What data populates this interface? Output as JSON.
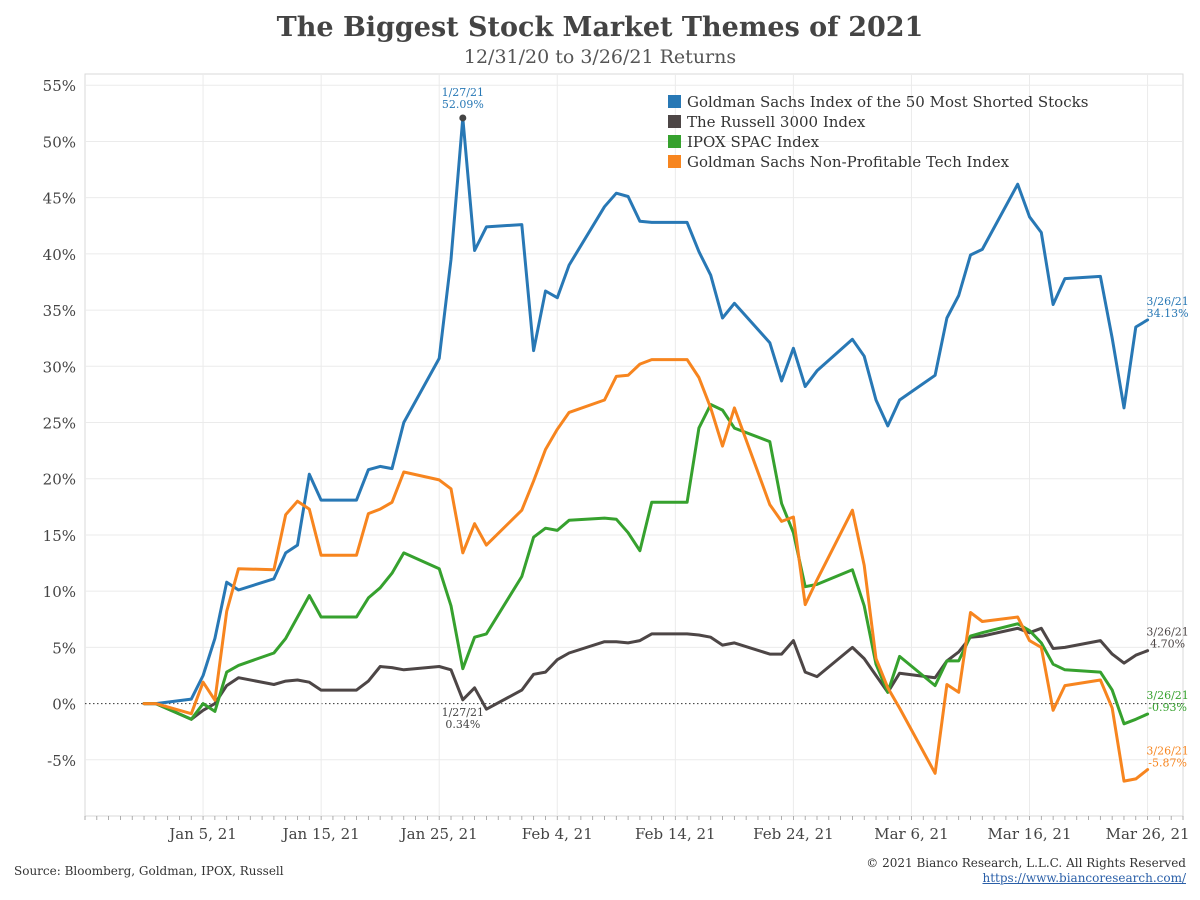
{
  "colors": {
    "blue": "#2878b5",
    "dark": "#4d4646",
    "green": "#36a12e",
    "orange": "#f7851f"
  },
  "chart_data": {
    "type": "line",
    "title": "The Biggest Stock Market Themes of 2021",
    "subtitle": "12/31/20 to 3/26/21 Returns",
    "ylim": [
      -10,
      56
    ],
    "yticks": [
      -5,
      0,
      5,
      10,
      15,
      20,
      25,
      30,
      35,
      40,
      45,
      50,
      55
    ],
    "ytick_labels": [
      "-5%",
      "0%",
      "5%",
      "10%",
      "15%",
      "20%",
      "25%",
      "30%",
      "35%",
      "40%",
      "45%",
      "50%",
      "55%"
    ],
    "xticks": [
      "2021-01-05",
      "2021-01-15",
      "2021-01-25",
      "2021-02-04",
      "2021-02-14",
      "2021-02-24",
      "2021-03-06",
      "2021-03-16",
      "2021-03-26"
    ],
    "xtick_labels": [
      "Jan 5, 21",
      "Jan 15, 21",
      "Jan 25, 21",
      "Feb 4, 21",
      "Feb 14, 21",
      "Feb 24, 21",
      "Mar 6, 21",
      "Mar 16, 21",
      "Mar 26, 21"
    ],
    "xlim": [
      "2020-12-26",
      "2021-03-29"
    ],
    "grid": true,
    "zero_line": "dotted",
    "legend_position": "top-right",
    "series": [
      {
        "name": "Goldman Sachs Index of the 50 Most Shorted Stocks",
        "color": "#2878b5",
        "points": [
          [
            "2020-12-31",
            0
          ],
          [
            "2021-01-01",
            0
          ],
          [
            "2021-01-04",
            0.4
          ],
          [
            "2021-01-05",
            2.5
          ],
          [
            "2021-01-06",
            5.8
          ],
          [
            "2021-01-07",
            10.8
          ],
          [
            "2021-01-08",
            10.1
          ],
          [
            "2021-01-11",
            11.1
          ],
          [
            "2021-01-12",
            13.4
          ],
          [
            "2021-01-13",
            14.1
          ],
          [
            "2021-01-14",
            20.4
          ],
          [
            "2021-01-15",
            18.1
          ],
          [
            "2021-01-18",
            18.1
          ],
          [
            "2021-01-19",
            20.8
          ],
          [
            "2021-01-20",
            21.1
          ],
          [
            "2021-01-21",
            20.9
          ],
          [
            "2021-01-22",
            25.0
          ],
          [
            "2021-01-25",
            30.7
          ],
          [
            "2021-01-26",
            39.5
          ],
          [
            "2021-01-27",
            52.09
          ],
          [
            "2021-01-28",
            40.3
          ],
          [
            "2021-01-29",
            42.4
          ],
          [
            "2021-02-01",
            42.6
          ],
          [
            "2021-02-02",
            31.4
          ],
          [
            "2021-02-03",
            36.7
          ],
          [
            "2021-02-04",
            36.1
          ],
          [
            "2021-02-05",
            39.0
          ],
          [
            "2021-02-08",
            44.2
          ],
          [
            "2021-02-09",
            45.4
          ],
          [
            "2021-02-10",
            45.1
          ],
          [
            "2021-02-11",
            42.9
          ],
          [
            "2021-02-12",
            42.8
          ],
          [
            "2021-02-15",
            42.8
          ],
          [
            "2021-02-16",
            40.2
          ],
          [
            "2021-02-17",
            38.1
          ],
          [
            "2021-02-18",
            34.3
          ],
          [
            "2021-02-19",
            35.6
          ],
          [
            "2021-02-22",
            32.1
          ],
          [
            "2021-02-23",
            28.7
          ],
          [
            "2021-02-24",
            31.6
          ],
          [
            "2021-02-25",
            28.2
          ],
          [
            "2021-02-26",
            29.6
          ],
          [
            "2021-03-01",
            32.4
          ],
          [
            "2021-03-02",
            30.9
          ],
          [
            "2021-03-03",
            27.0
          ],
          [
            "2021-03-04",
            24.7
          ],
          [
            "2021-03-05",
            27.0
          ],
          [
            "2021-03-08",
            29.2
          ],
          [
            "2021-03-09",
            34.3
          ],
          [
            "2021-03-10",
            36.3
          ],
          [
            "2021-03-11",
            39.9
          ],
          [
            "2021-03-12",
            40.4
          ],
          [
            "2021-03-15",
            46.2
          ],
          [
            "2021-03-16",
            43.3
          ],
          [
            "2021-03-17",
            41.9
          ],
          [
            "2021-03-18",
            35.5
          ],
          [
            "2021-03-19",
            37.8
          ],
          [
            "2021-03-22",
            38.0
          ],
          [
            "2021-03-23",
            32.5
          ],
          [
            "2021-03-24",
            26.3
          ],
          [
            "2021-03-25",
            33.5
          ],
          [
            "2021-03-26",
            34.13
          ]
        ]
      },
      {
        "name": "The Russell 3000 Index",
        "color": "#4d4646",
        "points": [
          [
            "2020-12-31",
            0
          ],
          [
            "2021-01-01",
            0
          ],
          [
            "2021-01-04",
            -1.4
          ],
          [
            "2021-01-05",
            -0.6
          ],
          [
            "2021-01-06",
            0.0
          ],
          [
            "2021-01-07",
            1.6
          ],
          [
            "2021-01-08",
            2.3
          ],
          [
            "2021-01-11",
            1.7
          ],
          [
            "2021-01-12",
            2.0
          ],
          [
            "2021-01-13",
            2.1
          ],
          [
            "2021-01-14",
            1.9
          ],
          [
            "2021-01-15",
            1.2
          ],
          [
            "2021-01-18",
            1.2
          ],
          [
            "2021-01-19",
            2.0
          ],
          [
            "2021-01-20",
            3.3
          ],
          [
            "2021-01-21",
            3.2
          ],
          [
            "2021-01-22",
            3.0
          ],
          [
            "2021-01-25",
            3.3
          ],
          [
            "2021-01-26",
            3.0
          ],
          [
            "2021-01-27",
            0.34
          ],
          [
            "2021-01-28",
            1.4
          ],
          [
            "2021-01-29",
            -0.5
          ],
          [
            "2021-02-01",
            1.2
          ],
          [
            "2021-02-02",
            2.6
          ],
          [
            "2021-02-03",
            2.8
          ],
          [
            "2021-02-04",
            3.9
          ],
          [
            "2021-02-05",
            4.5
          ],
          [
            "2021-02-08",
            5.5
          ],
          [
            "2021-02-09",
            5.5
          ],
          [
            "2021-02-10",
            5.4
          ],
          [
            "2021-02-11",
            5.6
          ],
          [
            "2021-02-12",
            6.2
          ],
          [
            "2021-02-15",
            6.2
          ],
          [
            "2021-02-16",
            6.1
          ],
          [
            "2021-02-17",
            5.9
          ],
          [
            "2021-02-18",
            5.2
          ],
          [
            "2021-02-19",
            5.4
          ],
          [
            "2021-02-22",
            4.4
          ],
          [
            "2021-02-23",
            4.4
          ],
          [
            "2021-02-24",
            5.6
          ],
          [
            "2021-02-25",
            2.8
          ],
          [
            "2021-02-26",
            2.4
          ],
          [
            "2021-03-01",
            5.0
          ],
          [
            "2021-03-02",
            4.0
          ],
          [
            "2021-03-03",
            2.5
          ],
          [
            "2021-03-04",
            1.0
          ],
          [
            "2021-03-05",
            2.7
          ],
          [
            "2021-03-08",
            2.3
          ],
          [
            "2021-03-09",
            3.8
          ],
          [
            "2021-03-10",
            4.6
          ],
          [
            "2021-03-11",
            5.9
          ],
          [
            "2021-03-12",
            6.0
          ],
          [
            "2021-03-15",
            6.7
          ],
          [
            "2021-03-16",
            6.3
          ],
          [
            "2021-03-17",
            6.7
          ],
          [
            "2021-03-18",
            4.9
          ],
          [
            "2021-03-19",
            5.0
          ],
          [
            "2021-03-22",
            5.6
          ],
          [
            "2021-03-23",
            4.4
          ],
          [
            "2021-03-24",
            3.6
          ],
          [
            "2021-03-25",
            4.3
          ],
          [
            "2021-03-26",
            4.7
          ]
        ]
      },
      {
        "name": "IPOX SPAC Index",
        "color": "#36a12e",
        "points": [
          [
            "2020-12-31",
            0
          ],
          [
            "2021-01-01",
            0
          ],
          [
            "2021-01-04",
            -1.4
          ],
          [
            "2021-01-05",
            0.0
          ],
          [
            "2021-01-06",
            -0.7
          ],
          [
            "2021-01-07",
            2.8
          ],
          [
            "2021-01-08",
            3.4
          ],
          [
            "2021-01-11",
            4.5
          ],
          [
            "2021-01-12",
            5.8
          ],
          [
            "2021-01-14",
            9.6
          ],
          [
            "2021-01-15",
            7.7
          ],
          [
            "2021-01-18",
            7.7
          ],
          [
            "2021-01-19",
            9.4
          ],
          [
            "2021-01-20",
            10.3
          ],
          [
            "2021-01-21",
            11.6
          ],
          [
            "2021-01-22",
            13.4
          ],
          [
            "2021-01-25",
            12.0
          ],
          [
            "2021-01-26",
            8.7
          ],
          [
            "2021-01-27",
            3.1
          ],
          [
            "2021-01-28",
            5.9
          ],
          [
            "2021-01-29",
            6.2
          ],
          [
            "2021-02-01",
            11.3
          ],
          [
            "2021-02-02",
            14.8
          ],
          [
            "2021-02-03",
            15.6
          ],
          [
            "2021-02-04",
            15.4
          ],
          [
            "2021-02-05",
            16.3
          ],
          [
            "2021-02-08",
            16.5
          ],
          [
            "2021-02-09",
            16.4
          ],
          [
            "2021-02-10",
            15.2
          ],
          [
            "2021-02-11",
            13.6
          ],
          [
            "2021-02-12",
            17.9
          ],
          [
            "2021-02-15",
            17.9
          ],
          [
            "2021-02-16",
            24.5
          ],
          [
            "2021-02-17",
            26.6
          ],
          [
            "2021-02-18",
            26.1
          ],
          [
            "2021-02-19",
            24.5
          ],
          [
            "2021-02-22",
            23.3
          ],
          [
            "2021-02-23",
            17.8
          ],
          [
            "2021-02-24",
            15.2
          ],
          [
            "2021-02-25",
            10.4
          ],
          [
            "2021-02-26",
            10.6
          ],
          [
            "2021-03-01",
            11.9
          ],
          [
            "2021-03-02",
            8.7
          ],
          [
            "2021-03-03",
            3.5
          ],
          [
            "2021-03-04",
            1.0
          ],
          [
            "2021-03-05",
            4.2
          ],
          [
            "2021-03-08",
            1.6
          ],
          [
            "2021-03-09",
            3.8
          ],
          [
            "2021-03-10",
            3.8
          ],
          [
            "2021-03-11",
            6.0
          ],
          [
            "2021-03-12",
            6.3
          ],
          [
            "2021-03-15",
            7.1
          ],
          [
            "2021-03-16",
            6.5
          ],
          [
            "2021-03-17",
            5.4
          ],
          [
            "2021-03-18",
            3.5
          ],
          [
            "2021-03-19",
            3.0
          ],
          [
            "2021-03-22",
            2.8
          ],
          [
            "2021-03-23",
            1.2
          ],
          [
            "2021-03-24",
            -1.8
          ],
          [
            "2021-03-25",
            -1.4
          ],
          [
            "2021-03-26",
            -0.93
          ]
        ]
      },
      {
        "name": "Goldman Sachs Non-Profitable Tech Index",
        "color": "#f7851f",
        "points": [
          [
            "2020-12-31",
            0
          ],
          [
            "2021-01-01",
            0
          ],
          [
            "2021-01-04",
            -0.9
          ],
          [
            "2021-01-05",
            1.9
          ],
          [
            "2021-01-06",
            0.3
          ],
          [
            "2021-01-07",
            8.2
          ],
          [
            "2021-01-08",
            12.0
          ],
          [
            "2021-01-11",
            11.9
          ],
          [
            "2021-01-12",
            16.8
          ],
          [
            "2021-01-13",
            18.0
          ],
          [
            "2021-01-14",
            17.3
          ],
          [
            "2021-01-15",
            13.2
          ],
          [
            "2021-01-18",
            13.2
          ],
          [
            "2021-01-19",
            16.9
          ],
          [
            "2021-01-20",
            17.3
          ],
          [
            "2021-01-21",
            17.9
          ],
          [
            "2021-01-22",
            20.6
          ],
          [
            "2021-01-25",
            19.9
          ],
          [
            "2021-01-26",
            19.1
          ],
          [
            "2021-01-27",
            13.4
          ],
          [
            "2021-01-28",
            16.0
          ],
          [
            "2021-01-29",
            14.1
          ],
          [
            "2021-02-01",
            17.2
          ],
          [
            "2021-02-02",
            19.8
          ],
          [
            "2021-02-03",
            22.6
          ],
          [
            "2021-02-04",
            24.4
          ],
          [
            "2021-02-05",
            25.9
          ],
          [
            "2021-02-08",
            27.0
          ],
          [
            "2021-02-09",
            29.1
          ],
          [
            "2021-02-10",
            29.2
          ],
          [
            "2021-02-11",
            30.2
          ],
          [
            "2021-02-12",
            30.6
          ],
          [
            "2021-02-15",
            30.6
          ],
          [
            "2021-02-16",
            29.0
          ],
          [
            "2021-02-17",
            26.3
          ],
          [
            "2021-02-18",
            22.9
          ],
          [
            "2021-02-19",
            26.3
          ],
          [
            "2021-02-22",
            17.7
          ],
          [
            "2021-02-23",
            16.2
          ],
          [
            "2021-02-24",
            16.6
          ],
          [
            "2021-02-25",
            8.8
          ],
          [
            "2021-02-26",
            11.0
          ],
          [
            "2021-03-01",
            17.2
          ],
          [
            "2021-03-02",
            12.3
          ],
          [
            "2021-03-03",
            4.0
          ],
          [
            "2021-03-04",
            1.4
          ],
          [
            "2021-03-05",
            -0.4
          ],
          [
            "2021-03-08",
            -6.2
          ],
          [
            "2021-03-09",
            1.7
          ],
          [
            "2021-03-10",
            1.0
          ],
          [
            "2021-03-11",
            8.1
          ],
          [
            "2021-03-12",
            7.3
          ],
          [
            "2021-03-15",
            7.7
          ],
          [
            "2021-03-16",
            5.6
          ],
          [
            "2021-03-17",
            5.0
          ],
          [
            "2021-03-18",
            -0.6
          ],
          [
            "2021-03-19",
            1.6
          ],
          [
            "2021-03-22",
            2.1
          ],
          [
            "2021-03-23",
            -0.4
          ],
          [
            "2021-03-24",
            -6.9
          ],
          [
            "2021-03-25",
            -6.7
          ],
          [
            "2021-03-26",
            -5.87
          ]
        ]
      }
    ],
    "annotations": [
      {
        "series": 0,
        "date": "2021-01-27",
        "line1": "1/27/21",
        "line2": "52.09%",
        "placement": "above",
        "marker": true
      },
      {
        "series": 1,
        "date": "2021-01-27",
        "line1": "1/27/21",
        "line2": "0.34%",
        "placement": "below",
        "marker": false
      },
      {
        "series": 0,
        "date": "2021-03-26",
        "line1": "3/26/21",
        "line2": "34.13%",
        "placement": "right",
        "marker": false
      },
      {
        "series": 1,
        "date": "2021-03-26",
        "line1": "3/26/21",
        "line2": "4.70%",
        "placement": "right",
        "marker": false
      },
      {
        "series": 2,
        "date": "2021-03-26",
        "line1": "3/26/21",
        "line2": "-0.93%",
        "placement": "right",
        "marker": false
      },
      {
        "series": 3,
        "date": "2021-03-26",
        "line1": "3/26/21",
        "line2": "-5.87%",
        "placement": "right",
        "marker": false
      }
    ]
  },
  "footer": {
    "source": "Source: Bloomberg, Goldman, IPOX, Russell",
    "copyright": "© 2021 Bianco Research, L.L.C. All Rights Reserved",
    "link": "https://www.biancoresearch.com/"
  }
}
